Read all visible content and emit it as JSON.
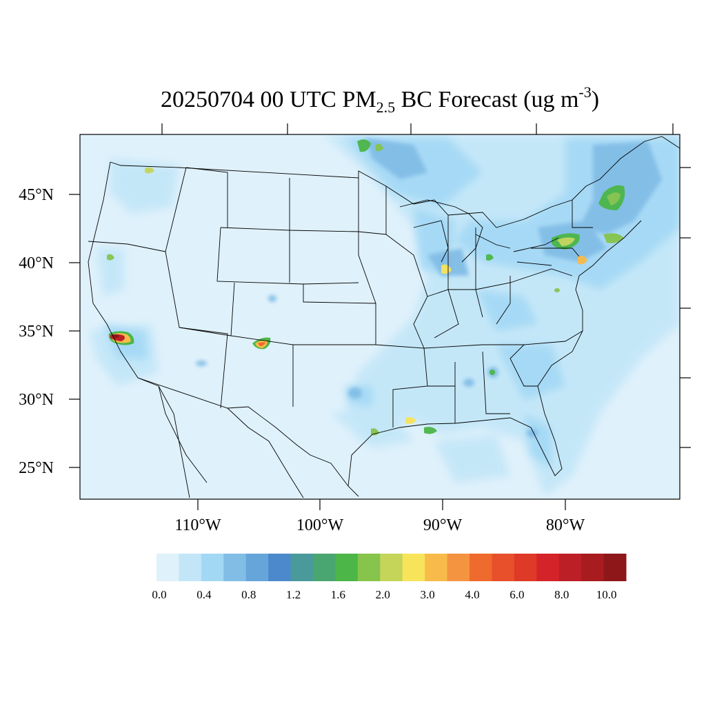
{
  "title": {
    "prefix": "20250704 00 UTC PM",
    "subscript": "2.5",
    "middle": " BC Forecast (ug m",
    "superscript": "-3",
    "suffix": ")"
  },
  "map": {
    "lat_labels": [
      "45°N",
      "40°N",
      "35°N",
      "30°N",
      "25°N"
    ],
    "lon_labels": [
      "110°W",
      "100°W",
      "90°W",
      "80°W"
    ],
    "background_color": "#dff1fb"
  },
  "colorbar": {
    "labels": [
      "0.0",
      "0.4",
      "0.8",
      "1.2",
      "1.6",
      "2.0",
      "3.0",
      "4.0",
      "6.0",
      "8.0",
      "10.0"
    ],
    "colors": [
      "#dff1fb",
      "#c2e6f8",
      "#a3d8f5",
      "#82bde6",
      "#66a5da",
      "#4b89cc",
      "#4a9a9c",
      "#4aa671",
      "#4cb648",
      "#86c44c",
      "#c4d55a",
      "#f7e45b",
      "#f8bb4a",
      "#f59440",
      "#ef6a2d",
      "#e8502b",
      "#de3a27",
      "#d42429",
      "#bd1f27",
      "#a81c20",
      "#8e1719"
    ]
  },
  "hotspots": [
    {
      "name": "southern-california-fire",
      "level": "10.0+"
    },
    {
      "name": "new-mexico-fire",
      "level": "6.0"
    },
    {
      "name": "northeast-corridor",
      "level": "2.0"
    },
    {
      "name": "chicago",
      "level": "3.0"
    },
    {
      "name": "ontario-north",
      "level": "2.0"
    },
    {
      "name": "louisiana-coast",
      "level": "3.0"
    }
  ]
}
